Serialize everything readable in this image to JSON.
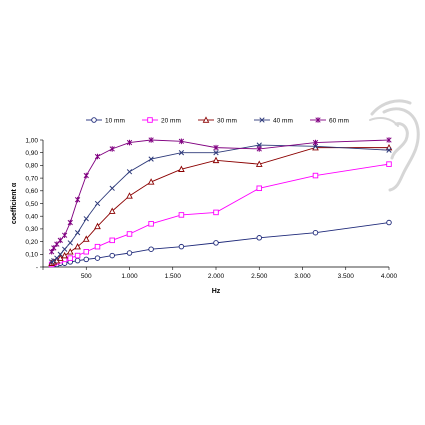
{
  "chart_data": {
    "type": "line",
    "xlabel": "Hz",
    "ylabel": "coefficient α",
    "xlim": [
      0,
      4000
    ],
    "ylim": [
      0,
      1.0
    ],
    "x_ticks": [
      0,
      500,
      1000,
      1500,
      2000,
      2500,
      3000,
      3500,
      4000
    ],
    "x_tick_labels": [
      "",
      "500",
      "1.000",
      "1.500",
      "2.000",
      "2.500",
      "3.000",
      "3.500",
      "4.000"
    ],
    "y_ticks": [
      0,
      0.1,
      0.2,
      0.3,
      0.4,
      0.5,
      0.6,
      0.7,
      0.8,
      0.9,
      1.0
    ],
    "y_tick_labels": [
      "-",
      "0,10",
      "0,20",
      "0,30",
      "0,40",
      "0,50",
      "0,60",
      "0,70",
      "0,80",
      "0,90",
      "1,00"
    ],
    "grid": false,
    "legend_position": "top",
    "series": [
      {
        "name": "10 mm",
        "color": "#1f2a7a",
        "marker": "circle",
        "x": [
          100,
          125,
          160,
          200,
          250,
          315,
          400,
          500,
          630,
          800,
          1000,
          1250,
          1600,
          2000,
          2500,
          3150,
          4000
        ],
        "y": [
          0.02,
          0.02,
          0.02,
          0.03,
          0.03,
          0.04,
          0.05,
          0.06,
          0.07,
          0.09,
          0.11,
          0.14,
          0.16,
          0.19,
          0.23,
          0.27,
          0.35
        ]
      },
      {
        "name": "20 mm",
        "color": "#ff00ff",
        "marker": "square",
        "x": [
          100,
          125,
          160,
          200,
          250,
          315,
          400,
          500,
          630,
          800,
          1000,
          1250,
          1600,
          2000,
          2500,
          3150,
          4000
        ],
        "y": [
          0.02,
          0.03,
          0.04,
          0.05,
          0.06,
          0.07,
          0.09,
          0.12,
          0.16,
          0.21,
          0.26,
          0.34,
          0.41,
          0.43,
          0.62,
          0.72,
          0.81
        ]
      },
      {
        "name": "30 mm",
        "color": "#8b0000",
        "marker": "triangle",
        "x": [
          100,
          125,
          160,
          200,
          250,
          315,
          400,
          500,
          630,
          800,
          1000,
          1250,
          1600,
          2000,
          2500,
          3150,
          4000
        ],
        "y": [
          0.03,
          0.04,
          0.05,
          0.07,
          0.09,
          0.12,
          0.16,
          0.22,
          0.32,
          0.44,
          0.56,
          0.67,
          0.77,
          0.84,
          0.81,
          0.94,
          0.94
        ]
      },
      {
        "name": "40 mm",
        "color": "#2e3a7a",
        "marker": "x",
        "x": [
          100,
          125,
          160,
          200,
          250,
          315,
          400,
          500,
          630,
          800,
          1000,
          1250,
          1600,
          2000,
          2500,
          3150,
          4000
        ],
        "y": [
          0.04,
          0.05,
          0.07,
          0.1,
          0.14,
          0.19,
          0.27,
          0.38,
          0.5,
          0.62,
          0.75,
          0.85,
          0.9,
          0.9,
          0.96,
          0.95,
          0.92
        ]
      },
      {
        "name": "60 mm",
        "color": "#800080",
        "marker": "star",
        "x": [
          100,
          125,
          160,
          200,
          250,
          315,
          400,
          500,
          630,
          800,
          1000,
          1250,
          1600,
          2000,
          2500,
          3150,
          4000
        ],
        "y": [
          0.12,
          0.15,
          0.18,
          0.21,
          0.25,
          0.35,
          0.53,
          0.72,
          0.87,
          0.93,
          0.98,
          1.0,
          0.99,
          0.94,
          0.93,
          0.98,
          1.0
        ]
      }
    ]
  },
  "decoration": {
    "icon": "ear-icon",
    "icon_color": "#d8d8d8"
  }
}
